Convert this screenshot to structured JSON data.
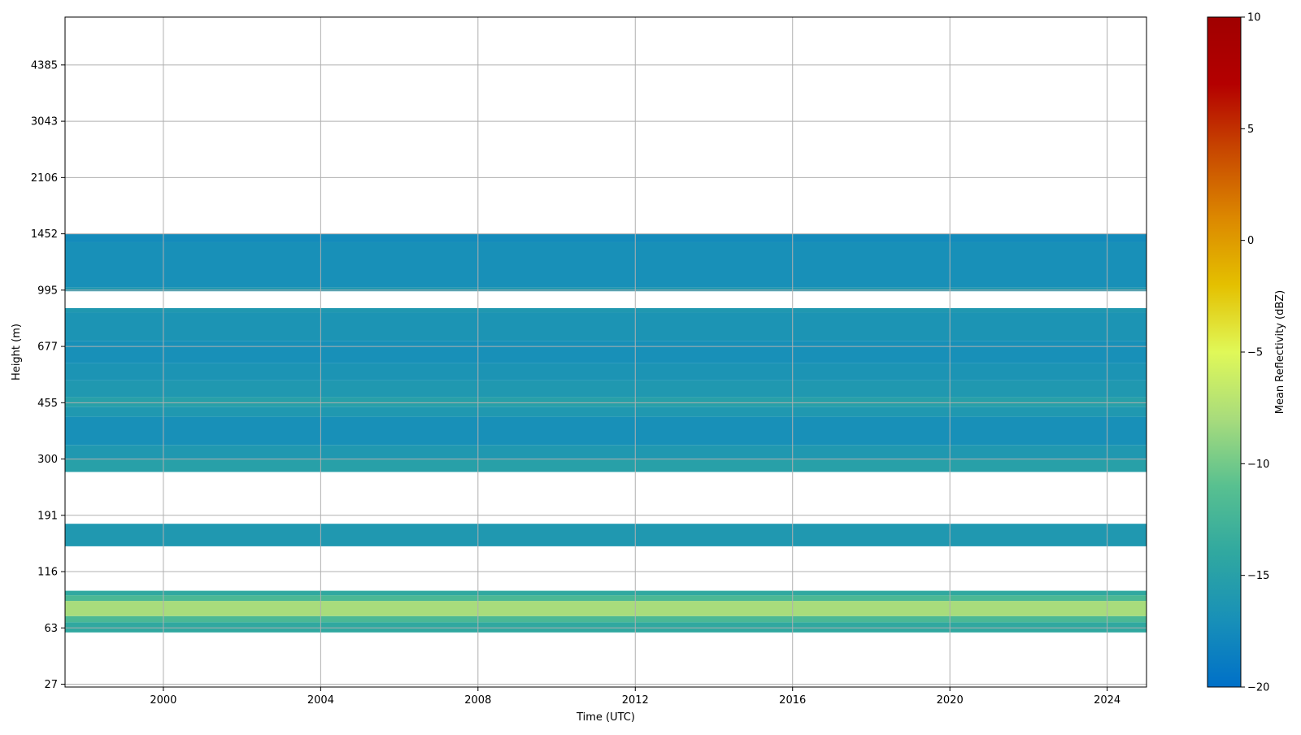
{
  "chart_data": {
    "type": "heatmap",
    "title": "",
    "xlabel": "Time (UTC)",
    "ylabel": "Height (m)",
    "x_ticks": [
      2000,
      2004,
      2008,
      2012,
      2016,
      2020,
      2024
    ],
    "xlim": [
      1997.5,
      2025.0
    ],
    "y_ticks": [
      "27",
      "63",
      "116",
      "191",
      "300",
      "455",
      "677",
      "995",
      "1452",
      "2106",
      "3043",
      "4385"
    ],
    "ylim_tick_index": [
      -0.05,
      11.85
    ],
    "grid": true,
    "colorbar": {
      "label": "Mean Reflectivity (dBZ)",
      "range": [
        -20,
        10
      ],
      "ticks": [
        "10",
        "5",
        "0",
        "−5",
        "−10",
        "−15",
        "−20"
      ],
      "tick_values": [
        10,
        5,
        0,
        -5,
        -10,
        -15,
        -20
      ],
      "colormap_stops": [
        "#0070c8",
        "#1890b8",
        "#30a8a0",
        "#58c090",
        "#a8dc7c",
        "#e0f858",
        "#e4c000",
        "#dc8800",
        "#c84800",
        "#b40000",
        "#a00000"
      ]
    },
    "bands": [
      {
        "y0": 0.92,
        "y1": 1.1,
        "dbz": -14
      },
      {
        "y0": 1.1,
        "y1": 1.21,
        "dbz": -12
      },
      {
        "y0": 1.21,
        "y1": 1.48,
        "dbz": -8
      },
      {
        "y0": 1.48,
        "y1": 1.58,
        "dbz": -12
      },
      {
        "y0": 1.58,
        "y1": 1.66,
        "dbz": -14
      },
      {
        "y0": 2.45,
        "y1": 2.85,
        "dbz": -16
      },
      {
        "y0": 3.77,
        "y1": 4.0,
        "dbz": -15
      },
      {
        "y0": 4.0,
        "y1": 4.25,
        "dbz": -16
      },
      {
        "y0": 4.25,
        "y1": 4.75,
        "dbz": -17
      },
      {
        "y0": 4.75,
        "y1": 4.93,
        "dbz": -16
      },
      {
        "y0": 4.93,
        "y1": 5.1,
        "dbz": -15
      },
      {
        "y0": 5.1,
        "y1": 5.4,
        "dbz": -16
      },
      {
        "y0": 5.4,
        "y1": 5.7,
        "dbz": -16.5
      },
      {
        "y0": 5.7,
        "y1": 6.1,
        "dbz": -17
      },
      {
        "y0": 6.1,
        "y1": 6.6,
        "dbz": -16.5
      },
      {
        "y0": 6.6,
        "y1": 6.68,
        "dbz": -16
      },
      {
        "y0": 6.98,
        "y1": 7.05,
        "dbz": -16
      },
      {
        "y0": 7.05,
        "y1": 7.85,
        "dbz": -17
      },
      {
        "y0": 7.85,
        "y1": 8.0,
        "dbz": -17.5
      }
    ]
  }
}
